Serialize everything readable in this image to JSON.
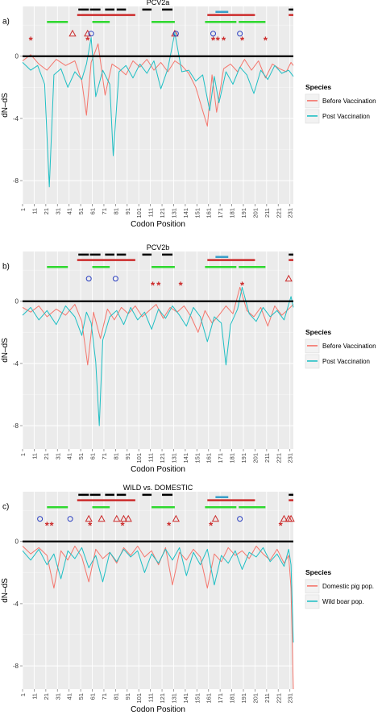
{
  "chart_data": [
    {
      "type": "line",
      "panel_label": "a)",
      "title": "PCV2a",
      "xlabel": "Codon Position",
      "ylabel": "dN–dS",
      "xlim": [
        1,
        234
      ],
      "ylim": [
        -9.5,
        3.2
      ],
      "y_ticks": [
        -8,
        -4,
        0
      ],
      "x_ticks": [
        "1",
        "11",
        "21",
        "31",
        "41",
        "51",
        "61",
        "71",
        "81",
        "91",
        "101",
        "111",
        "121",
        "131",
        "141",
        "151",
        "161",
        "171",
        "181",
        "191",
        "201",
        "211",
        "221",
        "231"
      ],
      "grid": true,
      "zero_line": true,
      "legend": {
        "title": "Species",
        "placement": "right",
        "entries": [
          {
            "label": "Before Vaccination",
            "color": "#f4766d"
          },
          {
            "label": "Post Vaccination",
            "color": "#1fbfc4"
          }
        ]
      },
      "series": [
        {
          "name": "Before Vaccination",
          "color": "#f4766d",
          "x": [
            1,
            8,
            15,
            22,
            30,
            38,
            46,
            52,
            56,
            60,
            66,
            72,
            78,
            84,
            90,
            96,
            102,
            108,
            114,
            120,
            126,
            132,
            138,
            144,
            150,
            156,
            160,
            164,
            168,
            174,
            180,
            186,
            192,
            198,
            204,
            210,
            216,
            222,
            228,
            232,
            234
          ],
          "y": [
            -0.3,
            0.1,
            -0.5,
            -0.9,
            -0.2,
            -0.6,
            -0.3,
            -1.6,
            -3.8,
            -0.4,
            0.8,
            -2.5,
            -0.5,
            -0.8,
            -1.2,
            -0.3,
            -0.7,
            -0.2,
            -0.9,
            -0.4,
            -1.0,
            -0.3,
            -0.6,
            -1.1,
            -2.0,
            -3.5,
            -4.5,
            -1.2,
            -3.6,
            -0.8,
            -0.5,
            -1.0,
            -0.2,
            -0.9,
            -0.3,
            -1.4,
            -0.5,
            -0.8,
            -1.0,
            -0.4,
            -0.6
          ]
        },
        {
          "name": "Post Vaccination",
          "color": "#1fbfc4",
          "x": [
            1,
            8,
            14,
            20,
            24,
            28,
            34,
            40,
            46,
            52,
            56,
            60,
            64,
            70,
            76,
            79,
            84,
            90,
            96,
            102,
            108,
            114,
            120,
            126,
            132,
            138,
            144,
            150,
            156,
            162,
            166,
            170,
            176,
            182,
            188,
            194,
            200,
            206,
            212,
            218,
            224,
            230,
            234
          ],
          "y": [
            -0.4,
            -0.9,
            -0.6,
            -1.8,
            -8.4,
            -1.2,
            -0.8,
            -2.0,
            -1.0,
            -1.5,
            -0.5,
            1.2,
            -2.6,
            -0.9,
            -1.8,
            -6.4,
            -1.0,
            -0.6,
            -1.4,
            -0.5,
            -1.1,
            -0.3,
            -2.1,
            -0.8,
            1.5,
            -1.0,
            -0.9,
            -1.6,
            -1.2,
            -3.5,
            -1.3,
            -3.0,
            -1.0,
            -1.8,
            -0.7,
            -1.2,
            -2.4,
            -0.9,
            -1.5,
            -0.6,
            -1.1,
            -0.9,
            -1.3
          ]
        }
      ],
      "annotations": {
        "black_bars": [
          [
            49,
            58
          ],
          [
            59,
            68
          ],
          [
            72,
            80
          ],
          [
            82,
            90
          ],
          [
            104,
            112
          ],
          [
            121,
            130
          ],
          [
            230,
            234
          ]
        ],
        "red_bars": [
          [
            48,
            98
          ],
          [
            160,
            201
          ],
          [
            230,
            234
          ]
        ],
        "blue_bars": [
          [
            167,
            178
          ]
        ],
        "green_bars": [
          [
            22,
            40
          ],
          [
            61,
            76
          ],
          [
            112,
            132
          ],
          [
            158,
            185
          ],
          [
            187,
            210
          ]
        ],
        "asterisks": [
          8,
          57,
          165,
          169,
          174,
          190,
          210
        ],
        "triangles": [
          44,
          57,
          132
        ],
        "circles": [
          60,
          133,
          165,
          188
        ]
      }
    },
    {
      "type": "line",
      "panel_label": "b)",
      "title": "PCV2b",
      "xlabel": "Codon Position",
      "ylabel": "dN–dS",
      "xlim": [
        1,
        234
      ],
      "ylim": [
        -9.5,
        3.2
      ],
      "y_ticks": [
        -8,
        -4,
        0
      ],
      "x_ticks": [
        "1",
        "11",
        "21",
        "31",
        "41",
        "51",
        "61",
        "71",
        "81",
        "91",
        "101",
        "111",
        "121",
        "131",
        "141",
        "151",
        "161",
        "171",
        "181",
        "191",
        "201",
        "211",
        "221",
        "231"
      ],
      "grid": true,
      "zero_line": true,
      "legend": {
        "title": "Species",
        "placement": "right",
        "entries": [
          {
            "label": "Before Vaccination",
            "color": "#f4766d"
          },
          {
            "label": "Post Vaccination",
            "color": "#1fbfc4"
          }
        ]
      },
      "series": [
        {
          "name": "Before Vaccination",
          "color": "#f4766d",
          "x": [
            1,
            8,
            15,
            22,
            30,
            38,
            46,
            52,
            57,
            62,
            68,
            74,
            80,
            86,
            92,
            98,
            104,
            110,
            116,
            122,
            128,
            134,
            140,
            146,
            152,
            158,
            164,
            170,
            176,
            182,
            188,
            194,
            200,
            206,
            212,
            218,
            224,
            230,
            234
          ],
          "y": [
            -0.4,
            -0.7,
            -0.3,
            -1.0,
            -0.5,
            -0.9,
            -0.2,
            -1.3,
            -4.1,
            -0.7,
            -2.4,
            -0.5,
            -1.2,
            -0.4,
            -0.8,
            -0.3,
            -1.0,
            -0.6,
            -0.2,
            -1.1,
            -0.4,
            -0.7,
            -0.3,
            -1.0,
            -2.0,
            -0.6,
            -1.4,
            -0.9,
            -0.3,
            -0.8,
            0.9,
            -0.6,
            -1.0,
            -0.4,
            -1.6,
            -0.3,
            -0.9,
            -0.5,
            -0.2
          ]
        },
        {
          "name": "Post Vaccination",
          "color": "#1fbfc4",
          "x": [
            1,
            8,
            15,
            22,
            30,
            38,
            46,
            52,
            56,
            60,
            64,
            67,
            70,
            76,
            82,
            88,
            94,
            100,
            106,
            112,
            118,
            124,
            130,
            136,
            142,
            148,
            154,
            160,
            166,
            172,
            176,
            180,
            186,
            190,
            196,
            202,
            208,
            214,
            220,
            226,
            232,
            234
          ],
          "y": [
            -0.9,
            -0.4,
            -1.2,
            -0.6,
            -1.5,
            -0.3,
            -1.0,
            -2.2,
            -0.7,
            -1.4,
            -3.9,
            -8.0,
            -2.5,
            -1.0,
            -0.6,
            -1.5,
            -0.4,
            -1.2,
            -0.7,
            -1.8,
            -0.5,
            -1.1,
            -0.3,
            -0.9,
            -1.6,
            -0.4,
            -1.0,
            -2.6,
            -1.0,
            -1.4,
            -4.1,
            -1.5,
            -0.5,
            0.9,
            -0.8,
            -1.3,
            -0.4,
            -1.0,
            -0.6,
            -1.2,
            0.3,
            -0.4
          ]
        }
      ],
      "annotations": {
        "black_bars": [
          [
            49,
            58
          ],
          [
            59,
            68
          ],
          [
            72,
            80
          ],
          [
            82,
            90
          ],
          [
            104,
            112
          ],
          [
            121,
            130
          ],
          [
            230,
            234
          ]
        ],
        "red_bars": [
          [
            48,
            98
          ],
          [
            160,
            201
          ],
          [
            230,
            234
          ]
        ],
        "blue_bars": [
          [
            167,
            178
          ]
        ],
        "green_bars": [
          [
            22,
            40
          ],
          [
            61,
            76
          ],
          [
            112,
            132
          ],
          [
            158,
            185
          ],
          [
            187,
            210
          ]
        ],
        "asterisks": [
          113,
          118,
          137,
          190
        ],
        "triangles": [
          230
        ],
        "circles": [
          58,
          81
        ]
      }
    },
    {
      "type": "line",
      "panel_label": "c)",
      "title": "WILD vs. DOMESTIC",
      "xlabel": "Codon Position",
      "ylabel": "dN–dS",
      "xlim": [
        1,
        234
      ],
      "ylim": [
        -9.5,
        3.2
      ],
      "y_ticks": [
        -8,
        -4,
        0
      ],
      "x_ticks": [
        "1",
        "11",
        "21",
        "31",
        "41",
        "51",
        "61",
        "71",
        "81",
        "91",
        "101",
        "111",
        "121",
        "131",
        "141",
        "151",
        "161",
        "171",
        "181",
        "191",
        "201",
        "211",
        "221",
        "231"
      ],
      "grid": true,
      "zero_line": true,
      "legend": {
        "title": "Species",
        "placement": "right",
        "entries": [
          {
            "label": "Domestic pig pop.",
            "color": "#f4766d"
          },
          {
            "label": "Wild boar pop.",
            "color": "#1fbfc4"
          }
        ]
      },
      "series": [
        {
          "name": "Domestic pig pop.",
          "color": "#f4766d",
          "x": [
            1,
            8,
            15,
            22,
            28,
            34,
            40,
            46,
            52,
            58,
            64,
            70,
            76,
            82,
            88,
            94,
            100,
            106,
            112,
            118,
            124,
            130,
            136,
            142,
            148,
            154,
            160,
            166,
            172,
            178,
            184,
            190,
            196,
            202,
            208,
            214,
            220,
            226,
            230,
            232,
            234
          ],
          "y": [
            -0.3,
            -0.8,
            -0.4,
            -0.9,
            -3.0,
            -0.6,
            -1.2,
            -0.3,
            -1.0,
            -2.6,
            -0.5,
            -1.1,
            -0.7,
            -1.4,
            -0.4,
            -0.9,
            -0.3,
            -1.0,
            -0.6,
            -1.5,
            -0.4,
            -2.8,
            -0.7,
            -1.2,
            -0.5,
            -1.0,
            -3.0,
            -0.8,
            -1.3,
            -0.4,
            -0.9,
            -0.6,
            -1.1,
            -0.3,
            -0.8,
            -1.2,
            -0.5,
            -1.4,
            -0.9,
            -3.0,
            -9.5
          ]
        },
        {
          "name": "Wild boar pop.",
          "color": "#1fbfc4",
          "x": [
            1,
            8,
            15,
            22,
            28,
            34,
            40,
            46,
            52,
            58,
            64,
            70,
            76,
            82,
            88,
            94,
            100,
            106,
            112,
            118,
            124,
            130,
            136,
            142,
            148,
            154,
            160,
            166,
            172,
            178,
            184,
            190,
            196,
            202,
            208,
            214,
            220,
            226,
            230,
            232,
            234
          ],
          "y": [
            -0.6,
            -1.2,
            -0.5,
            -1.5,
            -0.8,
            -2.4,
            -0.6,
            -1.1,
            -0.4,
            -1.7,
            -0.9,
            -2.6,
            -0.7,
            -1.3,
            -0.5,
            -1.0,
            -0.6,
            -2.0,
            -0.8,
            -1.4,
            -0.5,
            -1.2,
            -0.4,
            -2.2,
            -0.7,
            -1.5,
            -0.5,
            -2.8,
            -0.9,
            -1.4,
            -0.6,
            -1.8,
            -0.7,
            -1.0,
            -0.4,
            -1.3,
            -0.8,
            -1.6,
            -0.5,
            -1.5,
            -6.5
          ]
        }
      ],
      "annotations": {
        "black_bars": [
          [
            49,
            58
          ],
          [
            59,
            68
          ],
          [
            72,
            80
          ],
          [
            82,
            90
          ],
          [
            104,
            112
          ],
          [
            121,
            130
          ],
          [
            230,
            234
          ]
        ],
        "red_bars": [
          [
            48,
            98
          ],
          [
            160,
            201
          ],
          [
            230,
            234
          ]
        ],
        "blue_bars": [
          [
            167,
            178
          ]
        ],
        "green_bars": [
          [
            22,
            40
          ],
          [
            61,
            76
          ],
          [
            112,
            132
          ],
          [
            158,
            185
          ],
          [
            187,
            210
          ]
        ],
        "asterisks": [
          22,
          26,
          59,
          87,
          127,
          163,
          223
        ],
        "triangles": [
          58,
          69,
          82,
          88,
          92,
          133,
          167,
          226,
          230,
          232
        ],
        "circles": [
          16,
          42,
          188
        ]
      }
    }
  ]
}
